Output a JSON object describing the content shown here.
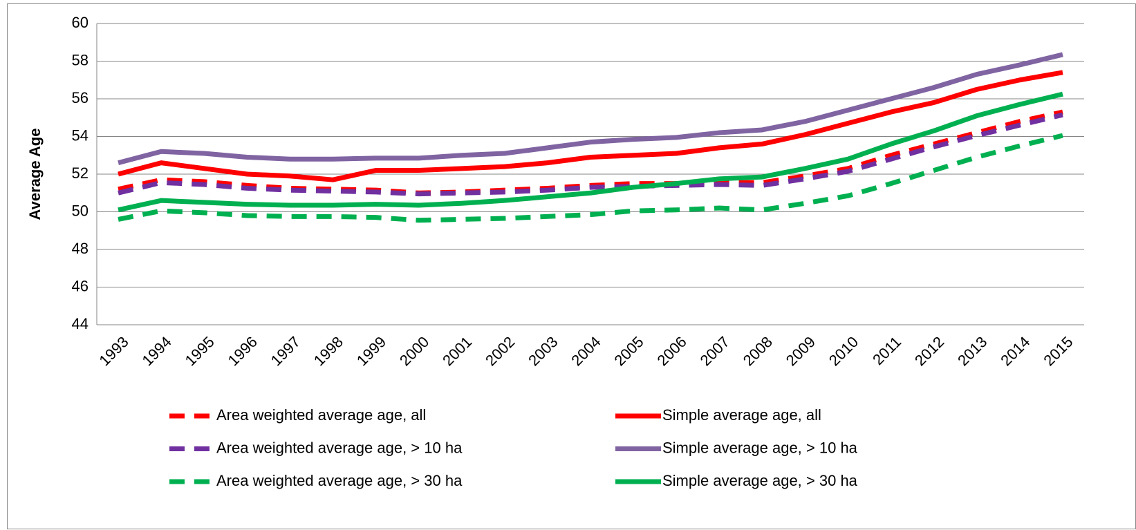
{
  "chart_data": {
    "type": "line",
    "y_label": "Average Age",
    "categories": [
      "1993",
      "1994",
      "1995",
      "1996",
      "1997",
      "1998",
      "1999",
      "2000",
      "2001",
      "2002",
      "2003",
      "2004",
      "2005",
      "2006",
      "2007",
      "2008",
      "2009",
      "2010",
      "2011",
      "2012",
      "2013",
      "2014",
      "2015"
    ],
    "ylim": [
      44,
      60
    ],
    "yticks": [
      44,
      46,
      48,
      50,
      52,
      54,
      56,
      58,
      60
    ],
    "grid": true,
    "series": [
      {
        "name": "Area weighted average age, all",
        "color": "#ff0000",
        "line_style": "dashed",
        "values": [
          51.2,
          51.7,
          51.6,
          51.4,
          51.25,
          51.2,
          51.15,
          51.0,
          51.05,
          51.15,
          51.25,
          51.4,
          51.5,
          51.5,
          51.55,
          51.55,
          51.9,
          52.3,
          53.0,
          53.6,
          54.2,
          54.8,
          55.3
        ]
      },
      {
        "name": "Simple average age, all",
        "color": "#ff0000",
        "line_style": "solid",
        "values": [
          52.0,
          52.6,
          52.3,
          52.0,
          51.9,
          51.7,
          52.2,
          52.2,
          52.3,
          52.4,
          52.6,
          52.9,
          53.0,
          53.1,
          53.4,
          53.6,
          54.1,
          54.7,
          55.3,
          55.8,
          56.5,
          57.0,
          57.4
        ]
      },
      {
        "name": "Area weighted average age, > 10 ha",
        "color": "#7030a0",
        "line_style": "dashed",
        "values": [
          51.0,
          51.55,
          51.45,
          51.25,
          51.15,
          51.1,
          51.05,
          50.95,
          51.0,
          51.05,
          51.15,
          51.3,
          51.35,
          51.4,
          51.45,
          51.4,
          51.75,
          52.15,
          52.8,
          53.45,
          54.05,
          54.6,
          55.15
        ]
      },
      {
        "name": "Simple average age, > 10 ha",
        "color": "#8064a2",
        "line_style": "solid",
        "values": [
          52.6,
          53.2,
          53.1,
          52.9,
          52.8,
          52.8,
          52.85,
          52.85,
          53.0,
          53.1,
          53.4,
          53.7,
          53.85,
          53.95,
          54.2,
          54.35,
          54.8,
          55.4,
          56.0,
          56.6,
          57.3,
          57.8,
          58.35
        ]
      },
      {
        "name": "Area weighted average age, > 30 ha",
        "color": "#00b050",
        "line_style": "dashed",
        "values": [
          49.6,
          50.05,
          49.95,
          49.8,
          49.75,
          49.75,
          49.7,
          49.55,
          49.6,
          49.65,
          49.75,
          49.85,
          50.05,
          50.1,
          50.2,
          50.1,
          50.45,
          50.85,
          51.5,
          52.2,
          52.9,
          53.5,
          54.05
        ]
      },
      {
        "name": "Simple average age, > 30 ha",
        "color": "#00b050",
        "line_style": "solid",
        "values": [
          50.1,
          50.6,
          50.5,
          50.4,
          50.35,
          50.35,
          50.4,
          50.35,
          50.45,
          50.6,
          50.8,
          51.0,
          51.3,
          51.5,
          51.75,
          51.85,
          52.3,
          52.8,
          53.6,
          54.3,
          55.1,
          55.7,
          56.25
        ]
      }
    ]
  }
}
